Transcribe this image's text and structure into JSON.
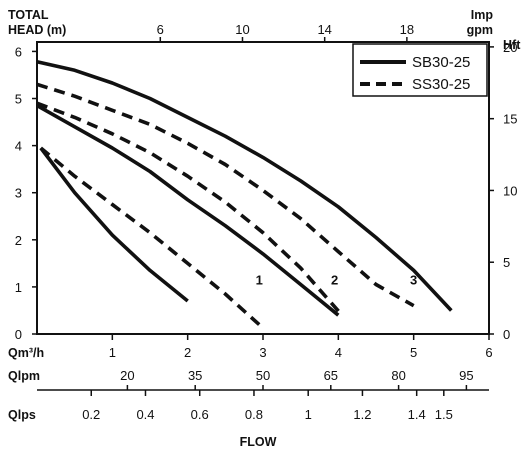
{
  "chart_data": {
    "type": "line",
    "title": "",
    "xlabel": "FLOW",
    "ylabel": "TOTAL HEAD (m)",
    "ylim": [
      0,
      6.2
    ],
    "xlim": [
      0,
      6
    ],
    "grid": false,
    "legend_position": "top-right",
    "axes": {
      "left": {
        "label_line1": "TOTAL",
        "label_line2": "HEAD (m)",
        "ticks": [
          "0",
          "1",
          "2",
          "3",
          "4",
          "5",
          "6"
        ]
      },
      "right": {
        "label": "Hft",
        "ticks": [
          "0",
          "5",
          "10",
          "15",
          "20"
        ]
      },
      "top": {
        "label_line1": "Imp",
        "label_line2": "gpm",
        "ticks": [
          "6",
          "10",
          "14",
          "18"
        ]
      },
      "bottom_primary": {
        "label": "Qm³/h",
        "ticks": [
          "1",
          "2",
          "3",
          "4",
          "5",
          "6"
        ]
      },
      "bottom_lpm": {
        "label": "Qlpm",
        "ticks": [
          "20",
          "35",
          "50",
          "65",
          "80",
          "95"
        ]
      },
      "bottom_lps": {
        "label": "Qlps",
        "ticks": [
          "0.2",
          "0.4",
          "0.6",
          "0.8",
          "1",
          "1.2",
          "1.4",
          "1.5"
        ]
      }
    },
    "legend": [
      {
        "name": "SB30-25",
        "style": "solid"
      },
      {
        "name": "SS30-25",
        "style": "dashed"
      }
    ],
    "speed_labels": [
      "1",
      "2",
      "3"
    ],
    "series": [
      {
        "name": "SB30-25",
        "speed": "1",
        "style": "solid",
        "x": [
          0.05,
          0.5,
          1.0,
          1.5,
          2.0
        ],
        "y": [
          3.95,
          3.0,
          2.1,
          1.35,
          0.7
        ]
      },
      {
        "name": "SB30-25",
        "speed": "2",
        "style": "solid",
        "x": [
          0.0,
          0.5,
          1.0,
          1.5,
          2.0,
          2.5,
          3.0,
          3.5,
          4.0
        ],
        "y": [
          4.85,
          4.4,
          3.95,
          3.45,
          2.85,
          2.3,
          1.7,
          1.05,
          0.4
        ]
      },
      {
        "name": "SB30-25",
        "speed": "3",
        "style": "solid",
        "x": [
          0.0,
          0.5,
          1.0,
          1.5,
          2.0,
          2.5,
          3.0,
          3.5,
          4.0,
          4.5,
          5.0,
          5.5
        ],
        "y": [
          5.78,
          5.6,
          5.33,
          5.0,
          4.6,
          4.2,
          3.75,
          3.25,
          2.7,
          2.05,
          1.35,
          0.5
        ]
      },
      {
        "name": "SS30-25",
        "speed": "1",
        "style": "dashed",
        "x": [
          0.05,
          0.5,
          1.0,
          1.5,
          2.0,
          2.5,
          2.95
        ],
        "y": [
          3.95,
          3.35,
          2.75,
          2.15,
          1.5,
          0.85,
          0.2
        ]
      },
      {
        "name": "SS30-25",
        "speed": "2",
        "style": "dashed",
        "x": [
          0.0,
          0.5,
          1.0,
          1.5,
          2.0,
          2.5,
          3.0,
          3.5,
          4.05
        ],
        "y": [
          4.9,
          4.6,
          4.25,
          3.85,
          3.35,
          2.8,
          2.15,
          1.4,
          0.4
        ]
      },
      {
        "name": "SS30-25",
        "speed": "3",
        "style": "dashed",
        "x": [
          0.0,
          0.5,
          1.0,
          1.5,
          2.0,
          2.5,
          3.0,
          3.5,
          4.0,
          4.5,
          5.0
        ],
        "y": [
          5.3,
          5.05,
          4.75,
          4.45,
          4.05,
          3.6,
          3.05,
          2.45,
          1.75,
          1.05,
          0.6
        ]
      }
    ]
  }
}
